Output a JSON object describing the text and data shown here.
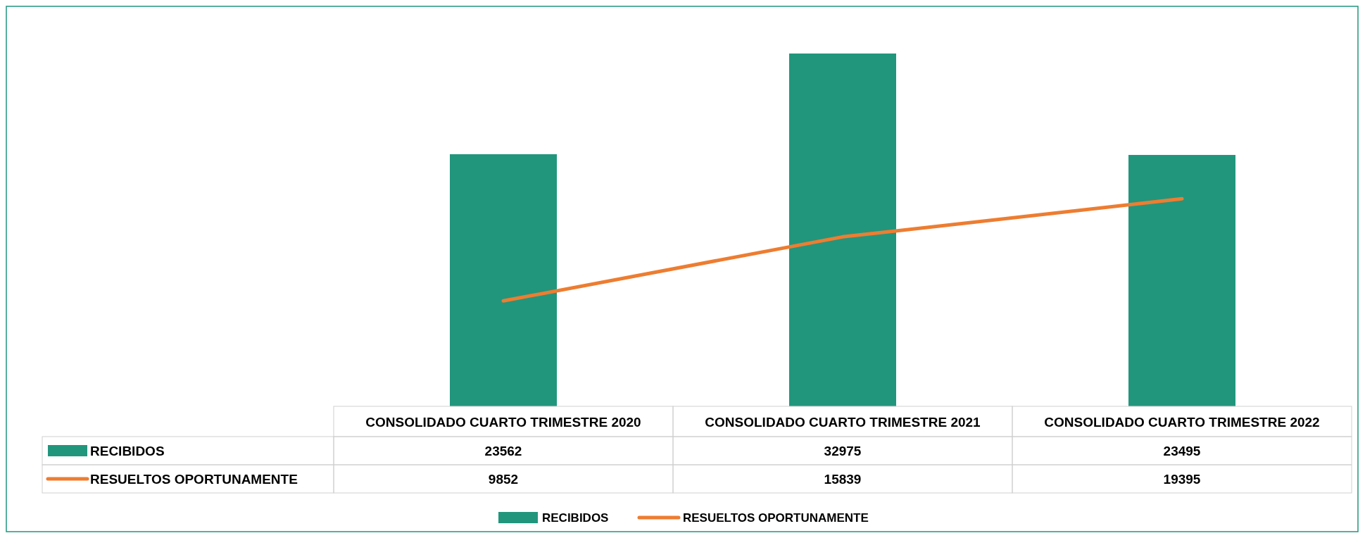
{
  "chart_data": {
    "type": "bar",
    "categories": [
      "CONSOLIDADO CUARTO TRIMESTRE 2020",
      "CONSOLIDADO CUARTO TRIMESTRE 2021",
      "CONSOLIDADO CUARTO TRIMESTRE 2022"
    ],
    "series": [
      {
        "name": "RECIBIDOS",
        "color": "#21967d",
        "values": [
          23562,
          32975,
          23495
        ]
      },
      {
        "name": "RESUELTOS OPORTUNAMENTE",
        "type": "line",
        "color": "#ed7d31",
        "values": [
          9852,
          15839,
          19395
        ]
      }
    ],
    "data_labels": true,
    "legend": "bottom"
  }
}
